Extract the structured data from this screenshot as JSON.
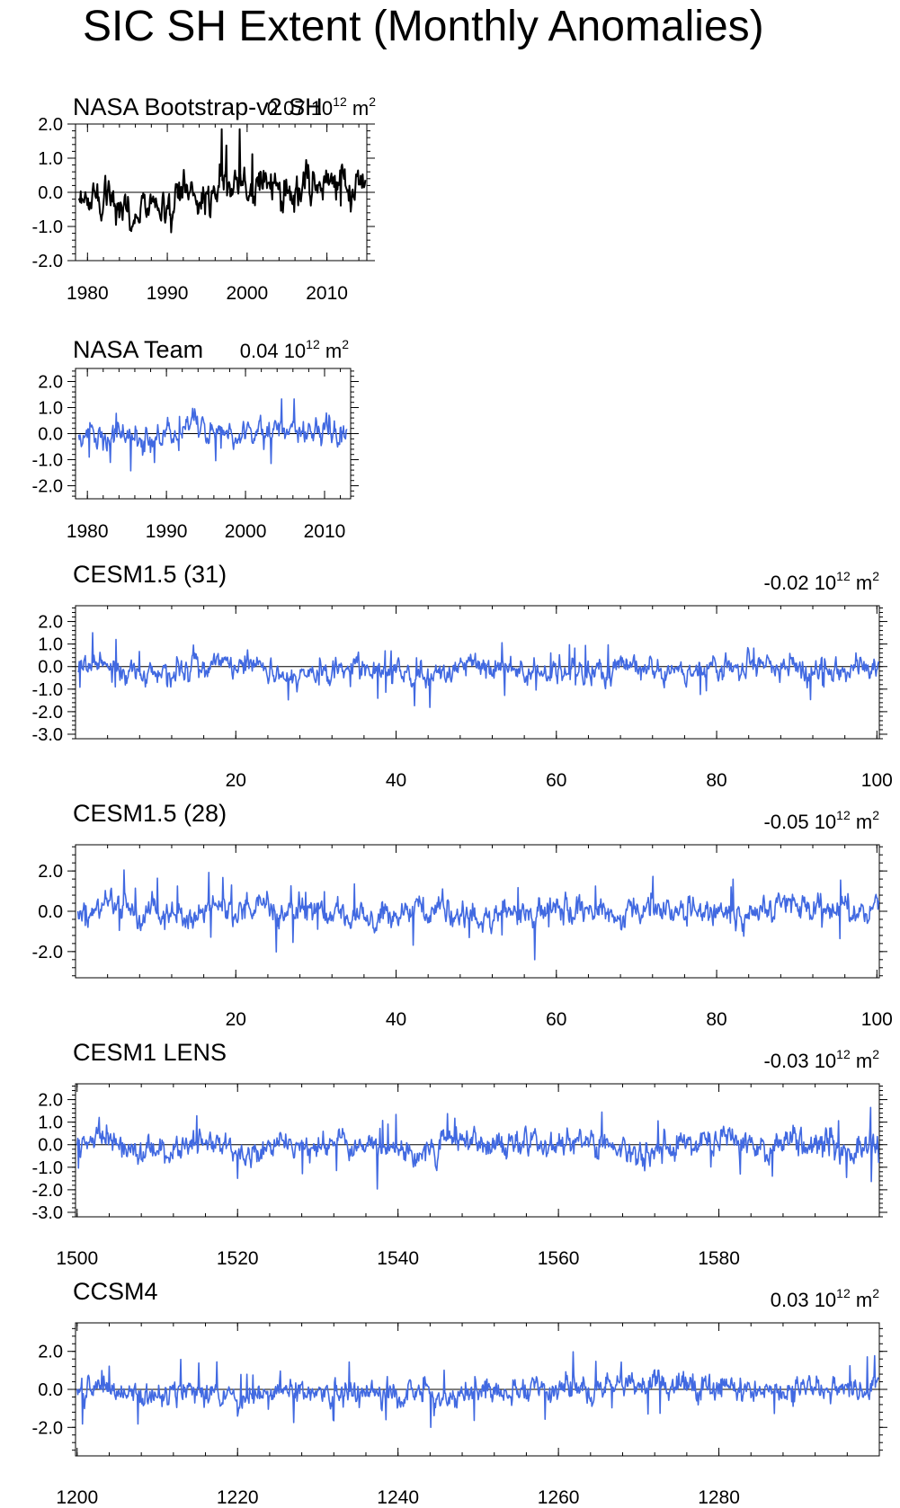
{
  "title": "SIC SH Extent (Monthly Anomalies)",
  "colors": {
    "observed_line": "#000000",
    "model_line": "#4169e1",
    "axis": "#000000",
    "zero_line": "#000000"
  },
  "chart_data": [
    {
      "type": "line",
      "title": "NASA Bootstrap-v2 SH",
      "annotation": {
        "value": "0.07 10",
        "exponent": "12",
        "unit": " m",
        "unit_exponent": "2"
      },
      "x": {
        "ticks": [
          1980,
          1990,
          2000,
          2010
        ],
        "range": [
          1978.5,
          2015.0
        ]
      },
      "y": {
        "ticks": [
          -2.0,
          -1.0,
          0.0,
          1.0,
          2.0
        ],
        "tick_labels": [
          "-2.0",
          "-1.0",
          "0.0",
          "1.0",
          "2.0"
        ],
        "range": [
          -2.0,
          2.0
        ]
      },
      "zero_line": true,
      "series": {
        "color": "black",
        "start": 1978.9,
        "step": 0.0833333,
        "count": 432,
        "std": 0.55,
        "trend": 0.035,
        "peak_min": -1.5,
        "peak_max": 1.85,
        "seed": 11,
        "amp": 1.0
      }
    },
    {
      "type": "line",
      "title": "NASA Team",
      "annotation": {
        "value": "0.04 10",
        "exponent": "12",
        "unit": " m",
        "unit_exponent": "2"
      },
      "x": {
        "ticks": [
          1980,
          1990,
          2000,
          2010
        ],
        "range": [
          1978.5,
          2013.3
        ]
      },
      "y": {
        "ticks": [
          -2.0,
          -1.0,
          0.0,
          1.0,
          2.0
        ],
        "tick_labels": [
          "-2.0",
          "-1.0",
          "0.0",
          "1.0",
          "2.0"
        ],
        "range": [
          -2.5,
          2.5
        ]
      },
      "zero_line": true,
      "series": {
        "color": "blue",
        "start": 1978.9,
        "step": 0.0833333,
        "count": 408,
        "std": 0.5,
        "trend": 0.02,
        "peak_min": -1.6,
        "peak_max": 2.0,
        "seed": 23,
        "amp": 1.0
      }
    },
    {
      "type": "line",
      "title": "CESM1.5 (31)",
      "annotation": {
        "value": "-0.02 10",
        "exponent": "12",
        "unit": " m",
        "unit_exponent": "2"
      },
      "x": {
        "ticks": [
          20,
          40,
          60,
          80,
          100
        ],
        "range": [
          0,
          100.3
        ]
      },
      "y": {
        "ticks": [
          -3.0,
          -2.0,
          -1.0,
          0.0,
          1.0,
          2.0
        ],
        "tick_labels": [
          "-3.0",
          "-2.0",
          "-1.0",
          "0.0",
          "1.0",
          "2.0"
        ],
        "range": [
          -3.2,
          2.7
        ]
      },
      "zero_line": true,
      "series": {
        "color": "blue",
        "start": 0.3,
        "step": 0.0833333,
        "count": 1200,
        "std": 0.55,
        "trend": 0.0,
        "peak_min": -2.35,
        "peak_max": 1.65,
        "seed": 37,
        "amp": 1.0
      }
    },
    {
      "type": "line",
      "title": "CESM1.5 (28)",
      "annotation": {
        "value": "-0.05 10",
        "exponent": "12",
        "unit": " m",
        "unit_exponent": "2"
      },
      "x": {
        "ticks": [
          20,
          40,
          60,
          80,
          100
        ],
        "range": [
          0,
          100.3
        ]
      },
      "y": {
        "ticks": [
          -2.0,
          0.0,
          2.0
        ],
        "tick_labels": [
          "-2.0",
          "0.0",
          "2.0"
        ],
        "range": [
          -3.3,
          3.3
        ]
      },
      "zero_line": false,
      "series": {
        "color": "blue",
        "start": 0.3,
        "step": 0.0833333,
        "count": 1200,
        "std": 0.7,
        "trend": 0.0,
        "peak_min": -2.4,
        "peak_max": 2.3,
        "seed": 53,
        "amp": 1.0
      }
    },
    {
      "type": "line",
      "title": "CESM1 LENS",
      "annotation": {
        "value": "-0.03 10",
        "exponent": "12",
        "unit": " m",
        "unit_exponent": "2"
      },
      "x": {
        "ticks": [
          1500,
          1520,
          1540,
          1560,
          1580
        ],
        "range": [
          1499.8,
          1600.0
        ]
      },
      "y": {
        "ticks": [
          -3.0,
          -2.0,
          -1.0,
          0.0,
          1.0,
          2.0
        ],
        "tick_labels": [
          "-3.0",
          "-2.0",
          "-1.0",
          "0.0",
          "1.0",
          "2.0"
        ],
        "range": [
          -3.2,
          2.7
        ]
      },
      "zero_line": true,
      "series": {
        "color": "blue",
        "start": 1500.0,
        "step": 0.0833333,
        "count": 1200,
        "std": 0.6,
        "trend": 0.0,
        "peak_min": -2.3,
        "peak_max": 1.65,
        "seed": 71,
        "amp": 1.0
      }
    },
    {
      "type": "line",
      "title": "CCSM4",
      "annotation": {
        "value": "0.03 10",
        "exponent": "12",
        "unit": " m",
        "unit_exponent": "2"
      },
      "x": {
        "ticks": [
          1200,
          1220,
          1240,
          1260,
          1280
        ],
        "range": [
          1199.8,
          1300.0
        ]
      },
      "y": {
        "ticks": [
          -2.0,
          0.0,
          2.0
        ],
        "tick_labels": [
          "-2.0",
          "0.0",
          "2.0"
        ],
        "range": [
          -3.5,
          3.5
        ]
      },
      "zero_line": true,
      "series": {
        "color": "blue",
        "start": 1200.0,
        "step": 0.0833333,
        "count": 1200,
        "std": 0.7,
        "trend": 0.0,
        "peak_min": -2.6,
        "peak_max": 2.75,
        "seed": 97,
        "amp": 1.0
      }
    }
  ]
}
